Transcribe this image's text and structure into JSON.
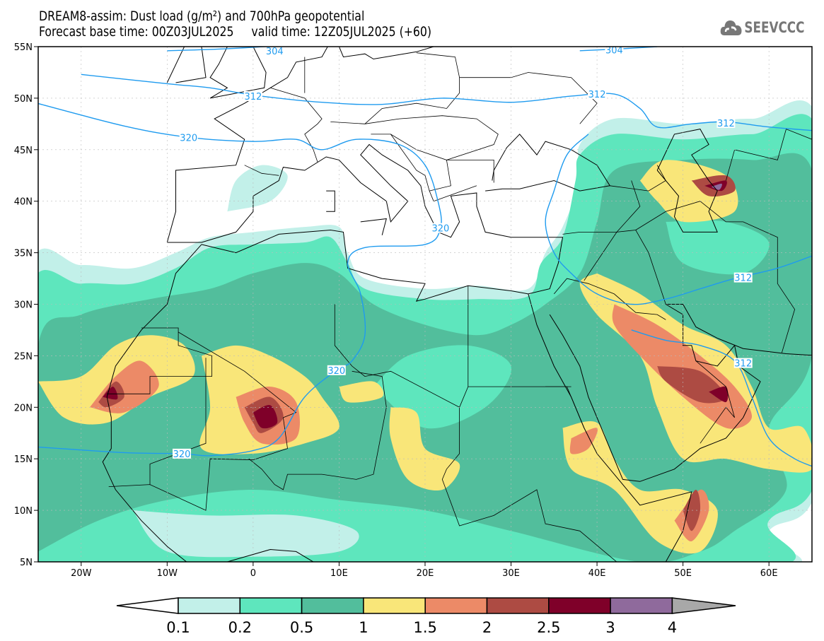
{
  "header": {
    "title_line1": "DREAM8-assim: Dust load (g/m²) and 700hPa geopotential",
    "title_line2": "Forecast base time: 00Z03JUL2025     valid time: 12Z05JUL2025 (+60)",
    "logo_text": "SEEVCCC",
    "logo_icon": "cloud-icon"
  },
  "map": {
    "lon_range": [
      -25,
      65
    ],
    "lat_range": [
      5,
      55
    ],
    "lat_labels": [
      "55N",
      "50N",
      "45N",
      "40N",
      "35N",
      "30N",
      "25N",
      "20N",
      "15N",
      "10N",
      "5N"
    ],
    "lon_labels": [
      "20W",
      "10W",
      "0",
      "10E",
      "20E",
      "30E",
      "40E",
      "50E",
      "60E"
    ],
    "contour_labels": [
      "304",
      "304",
      "312",
      "312",
      "312",
      "312",
      "312",
      "320",
      "320",
      "320",
      "320"
    ],
    "contour_color": "#1f9bef"
  },
  "colorbar": {
    "levels": [
      "0.1",
      "0.2",
      "0.5",
      "1",
      "1.5",
      "2",
      "2.5",
      "3",
      "4"
    ],
    "colors": [
      "#ffffff",
      "#c2f0e9",
      "#5ee6bd",
      "#52be9c",
      "#f9e679",
      "#ec8a67",
      "#ad4b43",
      "#7f0029",
      "#8f6a9c",
      "#a8a8a8"
    ]
  }
}
